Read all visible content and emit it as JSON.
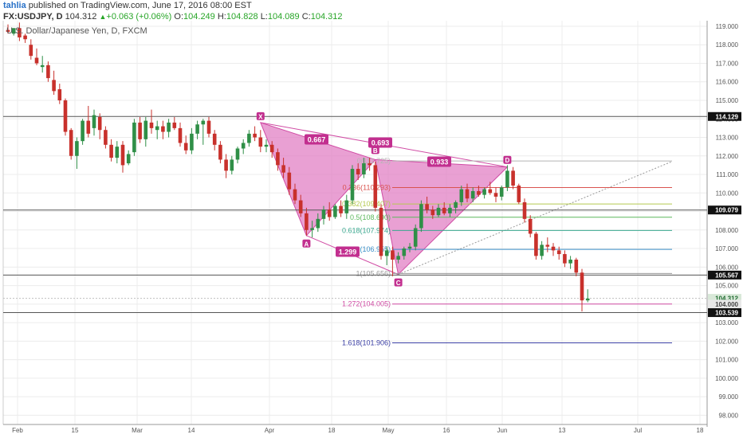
{
  "header": {
    "user": "tahlia",
    "published": "published on TradingView.com, June 17, 2016 08:00 EST",
    "symbol": "FX:USDJPY, D",
    "last": "104.312",
    "change": "+0.063 (+0.06%)",
    "o_label": "O:",
    "o": "104.249",
    "h_label": "H:",
    "h": "104.828",
    "l_label": "L:",
    "l": "104.089",
    "c_label": "C:",
    "c": "104.312"
  },
  "instrument_title": "U.S. Dollar/Japanese Yen, D, FXCM",
  "colors": {
    "up": "#2f8f47",
    "down": "#c8312c",
    "pattern_fill": "#e07bc2",
    "pattern_line": "#d04ca4",
    "label_bg": "#c22f8f",
    "axis_text": "#555555"
  },
  "chart_data": {
    "type": "candlestick",
    "grid": true,
    "ylim": [
      97.5,
      119.3
    ],
    "y_ticks": [
      "98.000",
      "99.000",
      "100.000",
      "101.000",
      "102.000",
      "103.000",
      "104.000",
      "105.000",
      "106.000",
      "107.000",
      "108.000",
      "109.000",
      "110.000",
      "111.000",
      "112.000",
      "113.000",
      "114.000",
      "115.000",
      "116.000",
      "117.000",
      "118.000",
      "119.000"
    ],
    "x_labels": [
      "Feb",
      "15",
      "Mar",
      "14",
      "Apr",
      "18",
      "May",
      "16",
      "Jun",
      "13",
      "Jul",
      "18"
    ],
    "horizontal_levels": [
      114.129,
      109.079,
      105.567,
      103.539
    ],
    "price_badges": [
      {
        "label": "114.129",
        "value": 114.129,
        "style": "dark"
      },
      {
        "label": "109.079",
        "value": 109.079,
        "style": "dark"
      },
      {
        "label": "105.567",
        "value": 105.567,
        "style": "dark"
      },
      {
        "label": "104.312",
        "value": 104.312,
        "style": "current"
      },
      {
        "label": "104.000",
        "value": 104.0,
        "style": "dim"
      },
      {
        "label": "103.539",
        "value": 103.539,
        "style": "dark"
      }
    ],
    "pattern": {
      "points": [
        {
          "label": "X",
          "value": 113.8
        },
        {
          "label": "A",
          "value": 107.7
        },
        {
          "label": "B",
          "value": 111.8
        },
        {
          "label": "C",
          "value": 105.6
        },
        {
          "label": "D",
          "value": 111.4
        }
      ],
      "ratios": [
        "0.667",
        "0.693",
        "0.933",
        "1.299"
      ]
    },
    "fib_levels": [
      {
        "label": "0(111.725)",
        "value": 111.725,
        "color": "#b5b5b5"
      },
      {
        "label": "0.236(110.293)",
        "value": 110.293,
        "color": "#d9534f"
      },
      {
        "label": "0.382(109.407)",
        "value": 109.407,
        "color": "#b5c94f"
      },
      {
        "label": "0.5(108.690)",
        "value": 108.69,
        "color": "#5cb85c"
      },
      {
        "label": "0.618(107.974)",
        "value": 107.974,
        "color": "#3aa88f"
      },
      {
        "label": "0.786(106.955)",
        "value": 106.955,
        "color": "#3a8fc8"
      },
      {
        "label": "1(105.656)",
        "value": 105.656,
        "color": "#999999"
      },
      {
        "label": "1.272(104.005)",
        "value": 104.005,
        "color": "#d04ca4"
      },
      {
        "label": "1.618(101.906)",
        "value": 101.906,
        "color": "#3b3fa5"
      }
    ],
    "candles": [
      [
        118.8,
        119.1,
        118.6,
        118.7
      ],
      [
        118.6,
        118.9,
        118.5,
        118.9
      ],
      [
        118.9,
        119.2,
        118.2,
        118.4
      ],
      [
        118.5,
        118.6,
        118.1,
        118.3
      ],
      [
        118.0,
        118.3,
        117.2,
        117.4
      ],
      [
        117.3,
        117.8,
        116.9,
        117.0
      ],
      [
        116.8,
        117.4,
        116.5,
        116.9
      ],
      [
        116.9,
        117.1,
        116.0,
        116.2
      ],
      [
        116.1,
        116.6,
        115.3,
        115.5
      ],
      [
        115.6,
        115.9,
        114.8,
        115.0
      ],
      [
        115.0,
        115.1,
        113.1,
        113.3
      ],
      [
        113.4,
        113.5,
        111.8,
        112.0
      ],
      [
        112.0,
        113.0,
        111.3,
        112.8
      ],
      [
        112.8,
        114.0,
        112.6,
        113.9
      ],
      [
        113.9,
        114.7,
        113.0,
        113.2
      ],
      [
        113.5,
        114.5,
        113.1,
        114.2
      ],
      [
        114.1,
        114.3,
        112.9,
        113.4
      ],
      [
        113.4,
        113.6,
        112.4,
        112.6
      ],
      [
        112.6,
        112.9,
        111.7,
        111.9
      ],
      [
        111.9,
        112.8,
        111.6,
        112.5
      ],
      [
        112.6,
        112.8,
        111.1,
        111.5
      ],
      [
        111.6,
        112.3,
        111.5,
        112.1
      ],
      [
        112.2,
        114.0,
        112.0,
        113.8
      ],
      [
        113.8,
        114.1,
        112.7,
        112.9
      ],
      [
        112.9,
        114.1,
        112.5,
        113.9
      ],
      [
        113.8,
        114.5,
        113.2,
        113.5
      ],
      [
        113.4,
        113.9,
        112.9,
        113.6
      ],
      [
        113.6,
        113.9,
        112.9,
        113.3
      ],
      [
        113.3,
        114.0,
        113.0,
        113.8
      ],
      [
        113.8,
        114.1,
        113.4,
        113.5
      ],
      [
        113.5,
        113.8,
        112.5,
        112.7
      ],
      [
        112.7,
        113.1,
        112.1,
        112.3
      ],
      [
        112.3,
        113.5,
        112.1,
        113.2
      ],
      [
        113.2,
        113.9,
        112.9,
        113.7
      ],
      [
        113.7,
        114.0,
        112.6,
        113.9
      ],
      [
        113.9,
        114.1,
        113.0,
        113.2
      ],
      [
        113.2,
        113.4,
        112.3,
        112.6
      ],
      [
        112.6,
        112.8,
        111.6,
        111.8
      ],
      [
        111.8,
        112.1,
        110.8,
        111.2
      ],
      [
        111.2,
        112.0,
        111.0,
        111.8
      ],
      [
        111.8,
        112.5,
        111.6,
        112.4
      ],
      [
        112.4,
        112.9,
        112.1,
        112.7
      ],
      [
        112.7,
        113.4,
        112.5,
        113.2
      ],
      [
        113.2,
        113.6,
        112.8,
        113.0
      ],
      [
        113.0,
        113.4,
        112.2,
        112.5
      ],
      [
        112.5,
        112.9,
        112.2,
        112.6
      ],
      [
        112.6,
        112.8,
        111.9,
        112.2
      ],
      [
        112.2,
        112.4,
        111.2,
        111.5
      ],
      [
        111.5,
        111.9,
        110.8,
        111.1
      ],
      [
        111.1,
        111.4,
        109.9,
        110.2
      ],
      [
        110.2,
        110.5,
        109.4,
        109.6
      ],
      [
        109.6,
        109.9,
        108.7,
        108.9
      ],
      [
        108.9,
        109.2,
        107.7,
        108.0
      ],
      [
        108.0,
        108.5,
        107.6,
        108.1
      ],
      [
        108.1,
        108.9,
        107.9,
        108.6
      ],
      [
        108.6,
        109.3,
        108.3,
        109.1
      ],
      [
        109.1,
        109.5,
        108.5,
        108.7
      ],
      [
        108.7,
        109.4,
        108.6,
        109.3
      ],
      [
        109.3,
        109.6,
        108.7,
        108.9
      ],
      [
        108.9,
        109.9,
        108.6,
        109.6
      ],
      [
        109.6,
        111.5,
        109.4,
        111.3
      ],
      [
        111.3,
        111.6,
        110.7,
        111.0
      ],
      [
        111.0,
        111.9,
        110.8,
        111.6
      ],
      [
        111.6,
        111.9,
        111.2,
        111.5
      ],
      [
        111.5,
        111.7,
        109.0,
        109.2
      ],
      [
        109.2,
        109.4,
        106.4,
        106.6
      ],
      [
        106.6,
        107.1,
        106.1,
        106.9
      ],
      [
        106.9,
        107.1,
        105.5,
        106.4
      ],
      [
        106.4,
        106.8,
        106.2,
        106.6
      ],
      [
        106.6,
        107.1,
        106.4,
        107.0
      ],
      [
        107.0,
        107.3,
        106.8,
        107.1
      ],
      [
        107.1,
        108.3,
        106.9,
        108.1
      ],
      [
        108.1,
        109.6,
        107.9,
        109.4
      ],
      [
        109.4,
        109.8,
        108.9,
        109.1
      ],
      [
        109.1,
        109.3,
        108.6,
        108.8
      ],
      [
        108.8,
        109.4,
        108.7,
        109.2
      ],
      [
        109.2,
        109.5,
        108.8,
        108.9
      ],
      [
        108.9,
        109.4,
        108.7,
        109.2
      ],
      [
        109.2,
        109.6,
        108.9,
        109.5
      ],
      [
        109.5,
        110.4,
        109.3,
        110.2
      ],
      [
        110.2,
        110.5,
        109.5,
        109.7
      ],
      [
        109.7,
        110.3,
        109.5,
        110.1
      ],
      [
        110.1,
        110.4,
        109.8,
        109.9
      ],
      [
        109.9,
        110.3,
        109.7,
        110.2
      ],
      [
        110.2,
        110.6,
        109.9,
        110.0
      ],
      [
        110.0,
        110.3,
        109.5,
        109.8
      ],
      [
        109.8,
        110.4,
        109.6,
        110.3
      ],
      [
        110.3,
        111.5,
        110.1,
        111.2
      ],
      [
        111.2,
        111.4,
        110.2,
        110.4
      ],
      [
        110.4,
        110.5,
        109.4,
        109.5
      ],
      [
        109.5,
        109.7,
        108.4,
        108.6
      ],
      [
        108.6,
        108.8,
        107.6,
        107.8
      ],
      [
        107.8,
        107.9,
        106.4,
        106.6
      ],
      [
        106.6,
        107.4,
        106.4,
        107.2
      ],
      [
        107.2,
        107.6,
        106.8,
        107.1
      ],
      [
        107.1,
        107.3,
        106.6,
        106.9
      ],
      [
        106.9,
        107.1,
        106.4,
        106.7
      ],
      [
        106.7,
        106.9,
        106.0,
        106.2
      ],
      [
        106.2,
        106.6,
        105.9,
        106.4
      ],
      [
        106.4,
        106.5,
        105.5,
        105.7
      ],
      [
        105.7,
        105.9,
        103.6,
        104.2
      ],
      [
        104.2,
        104.8,
        104.1,
        104.3
      ]
    ]
  }
}
